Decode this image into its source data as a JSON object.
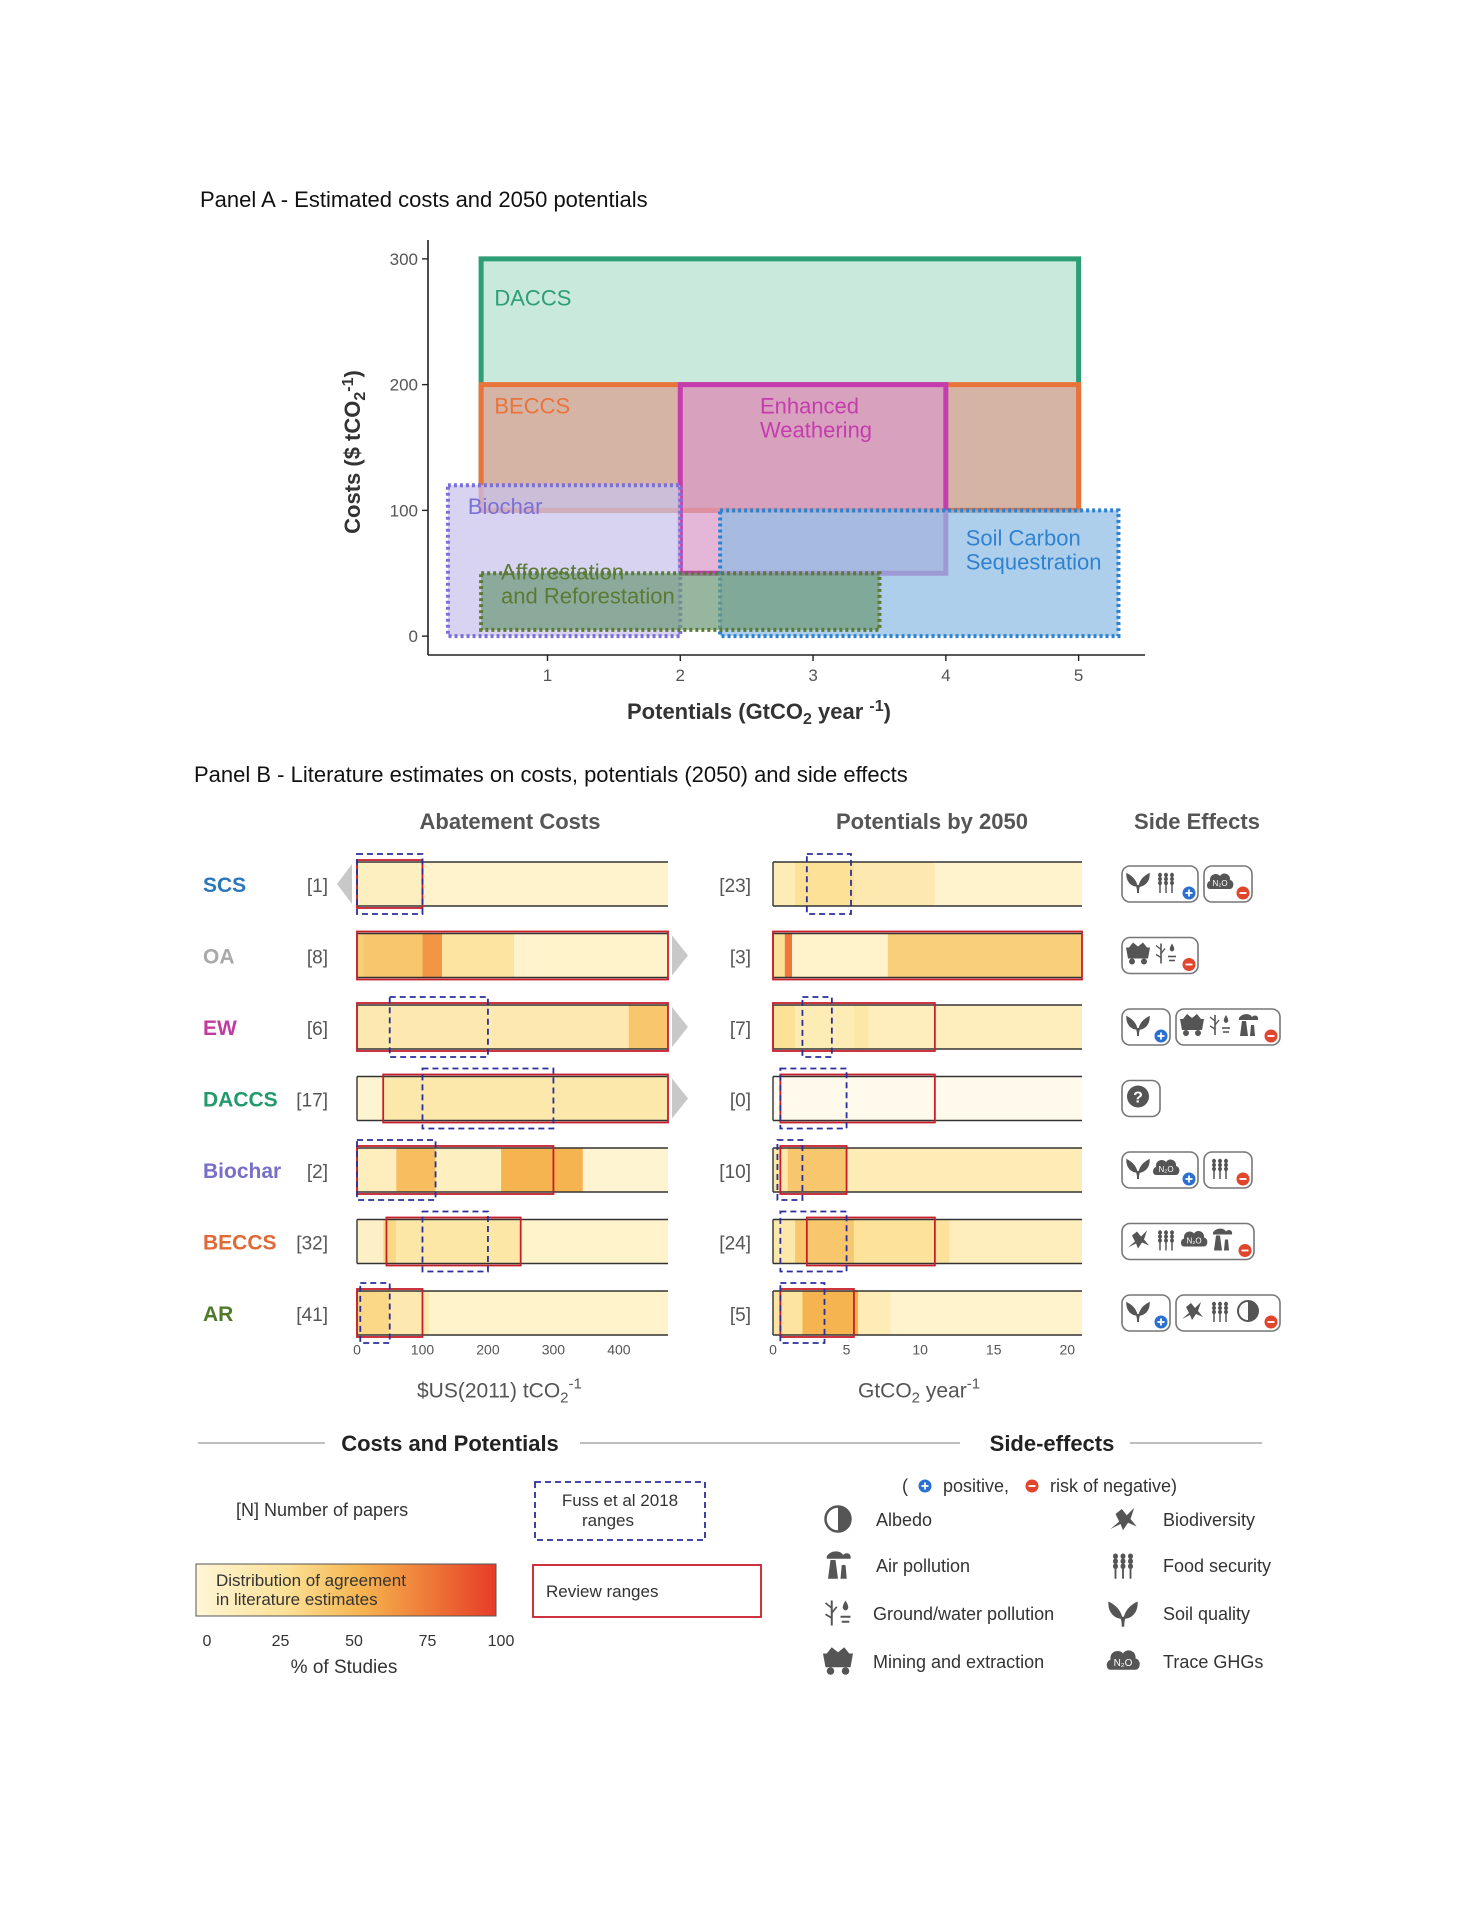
{
  "panel_a": {
    "title": "Panel A - Estimated costs and 2050 potentials",
    "xlabel": "Potentials (GtCO2 year -1)",
    "ylabel": "Costs ($ tCO2-1)",
    "x_ticks": [
      "1",
      "2",
      "3",
      "4",
      "5"
    ],
    "y_ticks": [
      "0",
      "100",
      "200",
      "300"
    ]
  },
  "chart_data": [
    {
      "type": "range-boxes",
      "title": "Panel A - Estimated costs and 2050 potentials",
      "xlabel": "Potentials (GtCO2 year -1)",
      "ylabel": "Costs ($ tCO2-1)",
      "xlim": [
        0.1,
        5.5
      ],
      "ylim": [
        -15,
        315
      ],
      "x_ticks": [
        1,
        2,
        3,
        4,
        5
      ],
      "y_ticks": [
        0,
        100,
        200,
        300
      ],
      "series": [
        {
          "name": "DACCS",
          "label_lines": [
            "DACCS"
          ],
          "x": [
            0.5,
            5.0
          ],
          "y": [
            100,
            300
          ],
          "color": "#2e9e74",
          "fill": "#b3e0cd",
          "style": "solid"
        },
        {
          "name": "BECCS",
          "label_lines": [
            "BECCS"
          ],
          "x": [
            0.5,
            5.0
          ],
          "y": [
            100,
            200
          ],
          "color": "#e8743b",
          "fill": "#d9a090",
          "style": "solid"
        },
        {
          "name": "Enhanced Weathering",
          "label_lines": [
            "Enhanced",
            "Weathering"
          ],
          "x": [
            2.0,
            4.0
          ],
          "y": [
            50,
            200
          ],
          "color": "#c43cae",
          "fill": "#d99ac8",
          "style": "solid"
        },
        {
          "name": "Biochar",
          "label_lines": [
            "Biochar"
          ],
          "x": [
            0.25,
            2.0
          ],
          "y": [
            0,
            120
          ],
          "color": "#7a70d8",
          "fill": "#c8c2ec",
          "style": "dotted"
        },
        {
          "name": "Soil Carbon Sequestration",
          "label_lines": [
            "Soil Carbon",
            "Sequestration"
          ],
          "x": [
            2.3,
            5.3
          ],
          "y": [
            0,
            100
          ],
          "color": "#2f82cf",
          "fill": "#8fbde4",
          "style": "dotted"
        },
        {
          "name": "Afforestation and Reforestation",
          "label_lines": [
            "Afforestation",
            "and Reforestation"
          ],
          "x": [
            0.5,
            3.5
          ],
          "y": [
            5,
            50
          ],
          "color": "#5b7a34",
          "fill": "#6f9a7a",
          "style": "dotted"
        }
      ]
    },
    {
      "type": "heatmap",
      "title": "Panel B - Literature estimates on costs, potentials (2050) and side effects",
      "costs_axis": {
        "title": "Abatement Costs",
        "unit": "$US(2011) tCO2-1",
        "range": [
          0,
          475
        ],
        "ticks": [
          "0",
          "100",
          "200",
          "300",
          "400"
        ]
      },
      "potentials_axis": {
        "title": "Potentials by 2050",
        "unit": "GtCO2 year-1",
        "range": [
          0,
          21
        ],
        "ticks": [
          "0",
          "5",
          "10",
          "15",
          "20"
        ]
      },
      "rows": [
        {
          "name": "SCS",
          "color": "#2a78bb",
          "cost_papers": "[1]",
          "pot_papers": "[23]",
          "cost_arrow": "left",
          "pot_arrow": "",
          "cost_fuss": [
            0,
            100
          ],
          "cost_review": [
            0,
            100
          ],
          "pot_fuss": [
            2.3,
            5.3
          ],
          "pot_review": null,
          "cost_heat": [
            [
              0,
              100,
              0.1
            ],
            [
              100,
              475,
              0.04
            ]
          ],
          "pot_heat": [
            [
              0,
              1.5,
              0.15
            ],
            [
              1.5,
              5.5,
              0.3
            ],
            [
              5.5,
              11,
              0.18
            ],
            [
              11,
              21,
              0.04
            ]
          ]
        },
        {
          "name": "OA",
          "color": "#a9a9a9",
          "cost_papers": "[8]",
          "pot_papers": "[3]",
          "cost_arrow": "right",
          "pot_arrow": "",
          "cost_fuss": null,
          "cost_review": [
            0,
            475
          ],
          "pot_fuss": null,
          "pot_review": [
            0,
            21
          ],
          "cost_heat": [
            [
              0,
              10,
              0.4
            ],
            [
              10,
              100,
              0.45
            ],
            [
              100,
              130,
              0.65
            ],
            [
              130,
              240,
              0.25
            ],
            [
              240,
              475,
              0.05
            ]
          ],
          "pot_heat": [
            [
              0,
              0.8,
              0.3
            ],
            [
              0.8,
              1.3,
              0.75
            ],
            [
              1.3,
              7.8,
              0.05
            ],
            [
              7.8,
              21,
              0.4
            ]
          ]
        },
        {
          "name": "EW",
          "color": "#c13c9e",
          "cost_papers": "[6]",
          "pot_papers": "[7]",
          "cost_arrow": "right",
          "pot_arrow": "",
          "cost_fuss": [
            50,
            200
          ],
          "cost_review": [
            0,
            475
          ],
          "pot_fuss": [
            2.0,
            4.0
          ],
          "pot_review": [
            0,
            11
          ],
          "cost_heat": [
            [
              0,
              415,
              0.18
            ],
            [
              415,
              475,
              0.45
            ]
          ],
          "pot_heat": [
            [
              0,
              1.5,
              0.3
            ],
            [
              1.5,
              5.5,
              0.15
            ],
            [
              5.5,
              6.5,
              0.22
            ],
            [
              6.5,
              21,
              0.12
            ]
          ]
        },
        {
          "name": "DACCS",
          "color": "#239a6b",
          "cost_papers": "[17]",
          "pot_papers": "[0]",
          "cost_arrow": "right",
          "pot_arrow": "",
          "cost_fuss": [
            100,
            300
          ],
          "cost_review": [
            40,
            475
          ],
          "pot_fuss": [
            0.5,
            5.0
          ],
          "pot_review": [
            0.5,
            11
          ],
          "cost_heat": [
            [
              0,
              40,
              0.03
            ],
            [
              40,
              475,
              0.2
            ]
          ],
          "pot_heat": []
        },
        {
          "name": "Biochar",
          "color": "#7770c8",
          "cost_papers": "[2]",
          "pot_papers": "[10]",
          "cost_arrow": "",
          "pot_arrow": "",
          "cost_fuss": [
            0,
            120
          ],
          "cost_review": [
            0,
            300
          ],
          "pot_fuss": [
            0.3,
            2.0
          ],
          "pot_review": [
            0.5,
            5.0
          ],
          "cost_heat": [
            [
              0,
              60,
              0.12
            ],
            [
              60,
              120,
              0.5
            ],
            [
              120,
              220,
              0.1
            ],
            [
              220,
              345,
              0.55
            ],
            [
              345,
              475,
              0.03
            ]
          ],
          "pot_heat": [
            [
              0,
              1.0,
              0.2
            ],
            [
              1.0,
              5.0,
              0.45
            ],
            [
              5.0,
              21,
              0.15
            ]
          ]
        },
        {
          "name": "BECCS",
          "color": "#e06a36",
          "cost_papers": "[32]",
          "pot_papers": "[24]",
          "cost_arrow": "",
          "pot_arrow": "",
          "cost_fuss": [
            100,
            200
          ],
          "cost_review": [
            45,
            250
          ],
          "pot_fuss": [
            0.5,
            5.0
          ],
          "pot_review": [
            2.3,
            11
          ],
          "cost_heat": [
            [
              0,
              40,
              0.08
            ],
            [
              40,
              60,
              0.35
            ],
            [
              60,
              250,
              0.22
            ],
            [
              250,
              475,
              0.05
            ]
          ],
          "pot_heat": [
            [
              0,
              1.5,
              0.2
            ],
            [
              1.5,
              5.5,
              0.45
            ],
            [
              5.5,
              12,
              0.28
            ],
            [
              12,
              21,
              0.12
            ]
          ]
        },
        {
          "name": "AR",
          "color": "#4f7a2b",
          "cost_papers": "[41]",
          "pot_papers": "[5]",
          "cost_arrow": "",
          "pot_arrow": "",
          "cost_fuss": [
            5,
            50
          ],
          "cost_review": [
            0,
            100
          ],
          "pot_fuss": [
            0.5,
            3.5
          ],
          "pot_review": [
            0.5,
            5.5
          ],
          "cost_heat": [
            [
              0,
              50,
              0.35
            ],
            [
              50,
              110,
              0.18
            ],
            [
              110,
              475,
              0.05
            ]
          ],
          "pot_heat": [
            [
              0,
              2.0,
              0.25
            ],
            [
              2.0,
              5.8,
              0.55
            ],
            [
              5.8,
              8.0,
              0.15
            ],
            [
              8.0,
              21,
              0.04
            ]
          ]
        }
      ]
    }
  ],
  "panel_b": {
    "title": "Panel B - Literature estimates on costs, potentials (2050) and side effects",
    "col_costs": "Abatement Costs",
    "col_potentials": "Potentials by 2050",
    "col_side": "Side Effects",
    "costs_unit": "$US(2011) tCO2-1",
    "potentials_unit": "GtCO2 year-1",
    "side_effects": [
      {
        "name": "SCS",
        "groups": [
          {
            "icons": [
              "soil-quality",
              "food-security"
            ],
            "sign": "positive"
          },
          {
            "icons": [
              "trace-ghgs"
            ],
            "sign": "negative"
          }
        ]
      },
      {
        "name": "OA",
        "groups": [
          {
            "icons": [
              "mining-extraction",
              "groundwater-pollution"
            ],
            "sign": "negative"
          }
        ]
      },
      {
        "name": "EW",
        "groups": [
          {
            "icons": [
              "soil-quality"
            ],
            "sign": "positive"
          },
          {
            "icons": [
              "mining-extraction",
              "groundwater-pollution",
              "air-pollution"
            ],
            "sign": "negative"
          }
        ]
      },
      {
        "name": "DACCS",
        "groups": [
          {
            "icons": [
              "question"
            ],
            "sign": "none"
          }
        ]
      },
      {
        "name": "Biochar",
        "groups": [
          {
            "icons": [
              "soil-quality",
              "trace-ghgs"
            ],
            "sign": "positive"
          },
          {
            "icons": [
              "food-security"
            ],
            "sign": "negative"
          }
        ]
      },
      {
        "name": "BECCS",
        "groups": [
          {
            "icons": [
              "biodiversity",
              "food-security",
              "trace-ghgs",
              "air-pollution"
            ],
            "sign": "negative"
          }
        ]
      },
      {
        "name": "AR",
        "groups": [
          {
            "icons": [
              "soil-quality"
            ],
            "sign": "positive"
          },
          {
            "icons": [
              "biodiversity",
              "food-security",
              "albedo"
            ],
            "sign": "negative"
          }
        ]
      }
    ]
  },
  "legend": {
    "costs_heading": "Costs and Potentials",
    "side_heading": "Side-effects",
    "n_papers": "[N] Number of papers",
    "fuss_line1": "Fuss et al 2018",
    "fuss_line2": "ranges",
    "review_ranges": "Review ranges",
    "gradient_line1": "Distribution of agreement",
    "gradient_line2": "in literature estimates",
    "gradient_ticks": [
      "0",
      "25",
      "50",
      "75",
      "100"
    ],
    "gradient_axis": "% of Studies",
    "sign_open": "(",
    "positive": "positive,",
    "negative": "risk of negative)",
    "items": [
      {
        "icon": "albedo",
        "label": "Albedo"
      },
      {
        "icon": "biodiversity",
        "label": "Biodiversity"
      },
      {
        "icon": "air-pollution",
        "label": "Air pollution"
      },
      {
        "icon": "food-security",
        "label": "Food security"
      },
      {
        "icon": "groundwater-pollution",
        "label": "Ground/water pollution"
      },
      {
        "icon": "soil-quality",
        "label": "Soil quality"
      },
      {
        "icon": "mining-extraction",
        "label": "Mining and extraction"
      },
      {
        "icon": "trace-ghgs",
        "label": "Trace GHGs"
      }
    ]
  }
}
